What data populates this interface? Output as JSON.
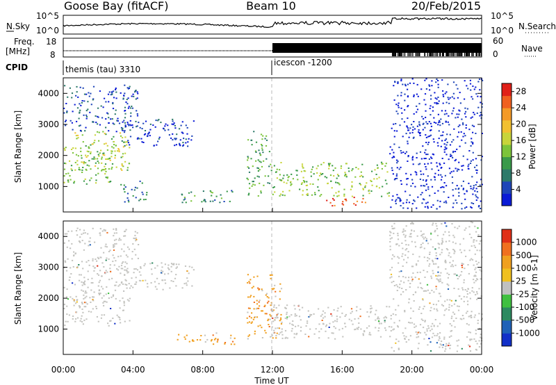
{
  "header": {
    "station": "Goose Bay (fitACF)",
    "beam": "Beam 10",
    "date": "20/Feb/2015"
  },
  "noise_panel": {
    "left_label": "N.Sky",
    "right_label": "N.Search",
    "left_ticks": [
      "10^5",
      "10^0"
    ],
    "right_ticks": [
      "10^5",
      "10^0"
    ]
  },
  "freq_panel": {
    "left_label_1": "Freq.",
    "left_label_2": "[MHz]",
    "right_label": "Nave",
    "left_ticks": [
      "18",
      "8"
    ],
    "right_ticks": [
      "60",
      "0"
    ]
  },
  "cpid": {
    "label": "CPID",
    "segments": [
      {
        "name": "themis (tau) 3310",
        "start_hour": 0
      },
      {
        "name": "icescon -1200",
        "start_hour": 12
      }
    ]
  },
  "time_axis": {
    "label": "Time UT",
    "ticks": [
      "00:00",
      "04:00",
      "08:00",
      "12:00",
      "16:00",
      "20:00",
      "00:00"
    ]
  },
  "chart_data": [
    {
      "type": "heatmap",
      "title": "",
      "xlabel": "Time UT",
      "ylabel": "Slant Range [km]",
      "xlim_hours": [
        0,
        24
      ],
      "ylim_km": [
        180,
        4500
      ],
      "yticks": [
        "4000",
        "3000",
        "2000",
        "1000"
      ],
      "ytick_values": [
        4000,
        3000,
        2000,
        1000
      ],
      "colorbar": {
        "label": "Power [dB]",
        "range": [
          0,
          30
        ],
        "ticks": [
          "28",
          "24",
          "20",
          "16",
          "12",
          "8",
          "4"
        ],
        "tick_values": [
          28,
          24,
          20,
          16,
          12,
          8,
          4
        ],
        "colors": [
          "#0b1bd6",
          "#1f46b8",
          "#2d7a6a",
          "#3a9a4a",
          "#7cc43a",
          "#c8d43a",
          "#f2c030",
          "#f49a28",
          "#f06020",
          "#e02018"
        ]
      },
      "echo_regions": [
        {
          "t0": 0.0,
          "t1": 2.8,
          "r0": 1100,
          "r1": 2300,
          "level": 0.45
        },
        {
          "t0": 0.6,
          "t1": 3.8,
          "r0": 1500,
          "r1": 2800,
          "level": 0.5
        },
        {
          "t0": 0.0,
          "t1": 4.3,
          "r0": 2800,
          "r1": 4300,
          "level": 0.15
        },
        {
          "t0": 3.0,
          "t1": 7.5,
          "r0": 2300,
          "r1": 3200,
          "level": 0.1
        },
        {
          "t0": 6.5,
          "t1": 9.8,
          "r0": 500,
          "r1": 900,
          "level": 0.3
        },
        {
          "t0": 3.2,
          "t1": 4.8,
          "r0": 500,
          "r1": 1200,
          "level": 0.25
        },
        {
          "t0": 10.5,
          "t1": 11.8,
          "r0": 700,
          "r1": 2800,
          "level": 0.35
        },
        {
          "t0": 11.8,
          "t1": 18.7,
          "r0": 700,
          "r1": 1800,
          "level": 0.45
        },
        {
          "t0": 15.0,
          "t1": 17.5,
          "r0": 400,
          "r1": 700,
          "level": 0.9
        },
        {
          "t0": 18.7,
          "t1": 24.0,
          "r0": 300,
          "r1": 3000,
          "level": 0.05
        },
        {
          "t0": 18.9,
          "t1": 24.0,
          "r0": 3000,
          "r1": 4500,
          "level": 0.05
        }
      ]
    },
    {
      "type": "heatmap",
      "title": "",
      "xlabel": "Time UT",
      "ylabel": "Slant Range [km]",
      "xlim_hours": [
        0,
        24
      ],
      "ylim_km": [
        180,
        4500
      ],
      "yticks": [
        "4000",
        "3000",
        "2000",
        "1000"
      ],
      "ytick_values": [
        4000,
        3000,
        2000,
        1000
      ],
      "colorbar": {
        "label": "Velocity [m s-1]",
        "ticks": [
          "1000",
          "500",
          "100",
          "25",
          "-25",
          "-100",
          "-500",
          "-1000"
        ],
        "tick_values": [
          1000,
          500,
          100,
          25,
          -25,
          -100,
          -500,
          -1000
        ],
        "colors": [
          "#1230c8",
          "#1f62b8",
          "#2d8a60",
          "#40c040",
          "#c0c0c0",
          "#f0c020",
          "#f0a020",
          "#f07020",
          "#e03018"
        ]
      },
      "echo_regions": [
        {
          "t0": 0.0,
          "t1": 3.8,
          "r0": 1100,
          "r1": 2800,
          "level": "ground"
        },
        {
          "t0": 0.0,
          "t1": 4.3,
          "r0": 2800,
          "r1": 4300,
          "level": "ground"
        },
        {
          "t0": 3.0,
          "t1": 7.5,
          "r0": 2300,
          "r1": 3200,
          "level": "ground"
        },
        {
          "t0": 6.5,
          "t1": 9.8,
          "r0": 500,
          "r1": 900,
          "level": "toward"
        },
        {
          "t0": 10.5,
          "t1": 12.5,
          "r0": 700,
          "r1": 2800,
          "level": "toward"
        },
        {
          "t0": 11.8,
          "t1": 18.7,
          "r0": 700,
          "r1": 1800,
          "level": "ground"
        },
        {
          "t0": 18.7,
          "t1": 24.0,
          "r0": 300,
          "r1": 4500,
          "level": "ground"
        }
      ]
    }
  ]
}
